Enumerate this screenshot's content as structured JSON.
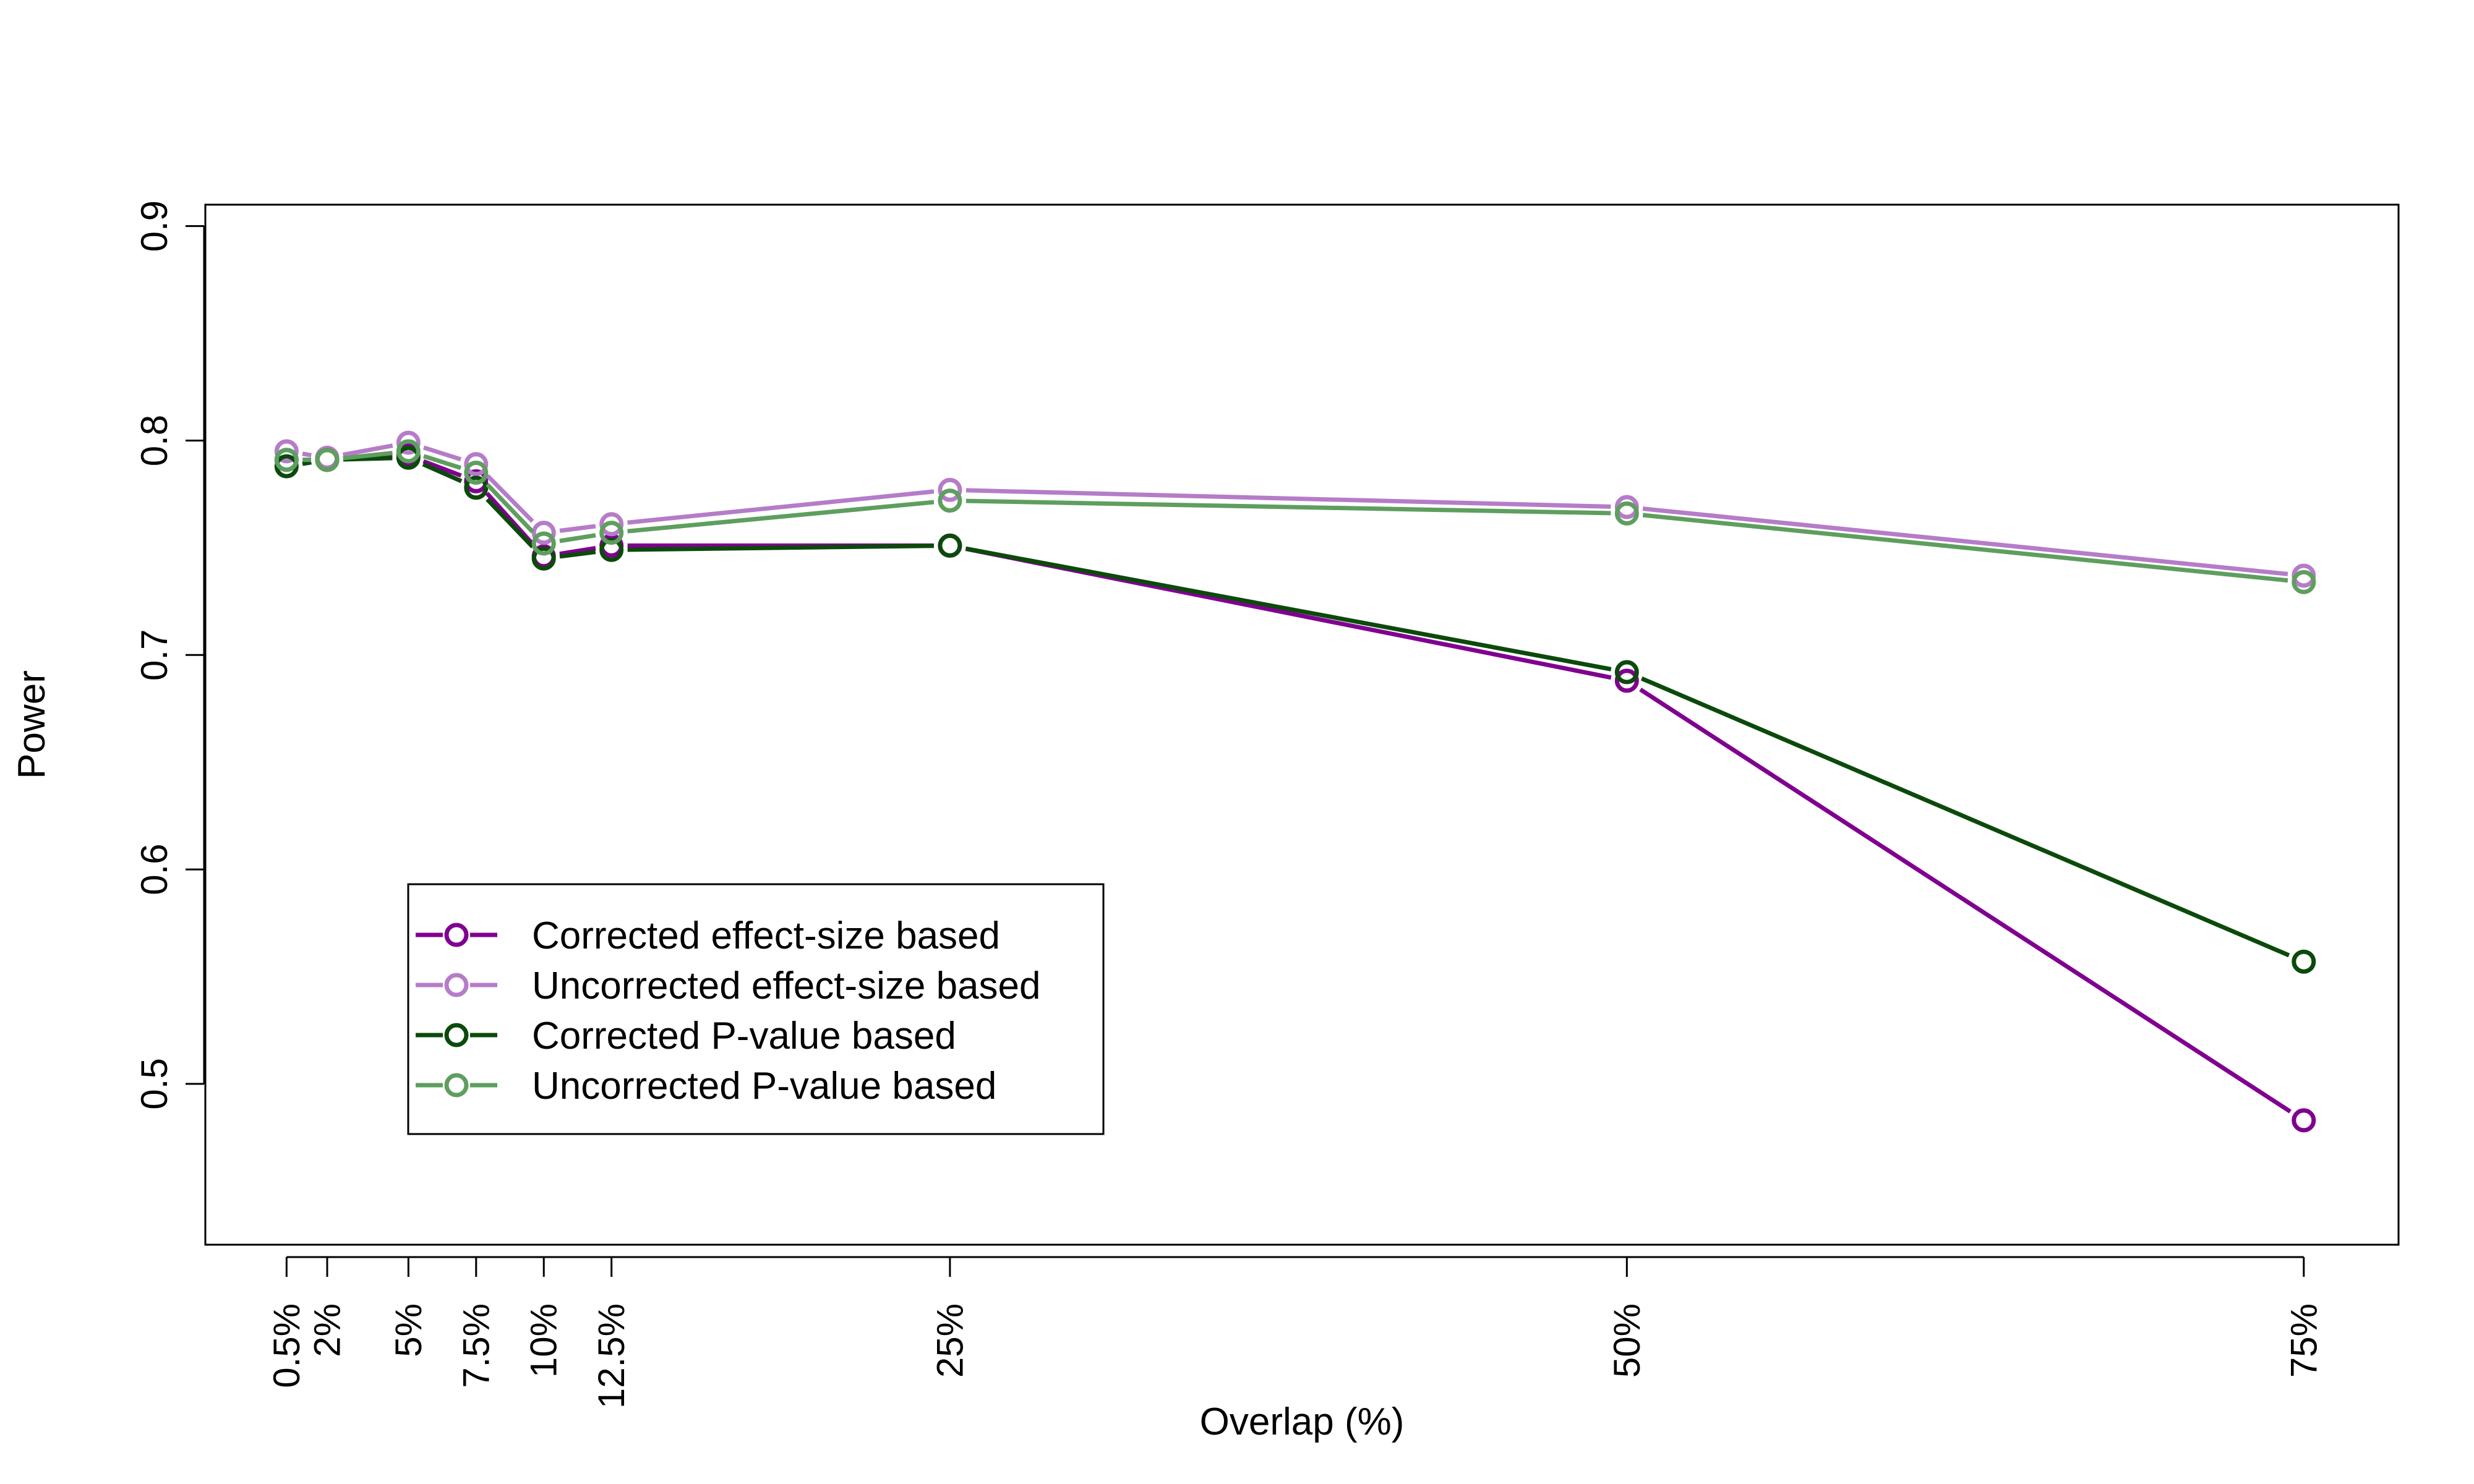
{
  "chart_data": {
    "type": "line",
    "xlabel": "Overlap (%)",
    "ylabel": "Power",
    "x": [
      0.5,
      2,
      5,
      7.5,
      10,
      12.5,
      25,
      50,
      75
    ],
    "xtick_labels": [
      "0.5%",
      "2%",
      "5%",
      "7.5%",
      "10%",
      "12.5%",
      "25%",
      "50%",
      "75%"
    ],
    "xlim": [
      -2.5,
      78.5
    ],
    "ylim": [
      0.425,
      0.91
    ],
    "yticks": [
      0.5,
      0.6,
      0.7,
      0.8,
      0.9
    ],
    "ytick_labels": [
      "0.5",
      "0.6",
      "0.7",
      "0.8",
      "0.9"
    ],
    "grid": false,
    "legend_position": "bottom-left",
    "series": [
      {
        "name": "Corrected effect-size based",
        "color": "#800090",
        "values": [
          0.791,
          0.791,
          0.793,
          0.781,
          0.746,
          0.751,
          0.751,
          0.688,
          0.483
        ]
      },
      {
        "name": "Uncorrected effect-size based",
        "color": "#B57CC8",
        "values": [
          0.795,
          0.792,
          0.799,
          0.789,
          0.757,
          0.761,
          0.777,
          0.769,
          0.737
        ]
      },
      {
        "name": "Corrected P-value based",
        "color": "#0B4A0B",
        "values": [
          0.788,
          0.791,
          0.792,
          0.778,
          0.745,
          0.749,
          0.751,
          0.692,
          0.557
        ]
      },
      {
        "name": "Uncorrected P-value based",
        "color": "#5E9E5E",
        "values": [
          0.791,
          0.791,
          0.795,
          0.785,
          0.752,
          0.757,
          0.772,
          0.766,
          0.734
        ]
      }
    ]
  }
}
